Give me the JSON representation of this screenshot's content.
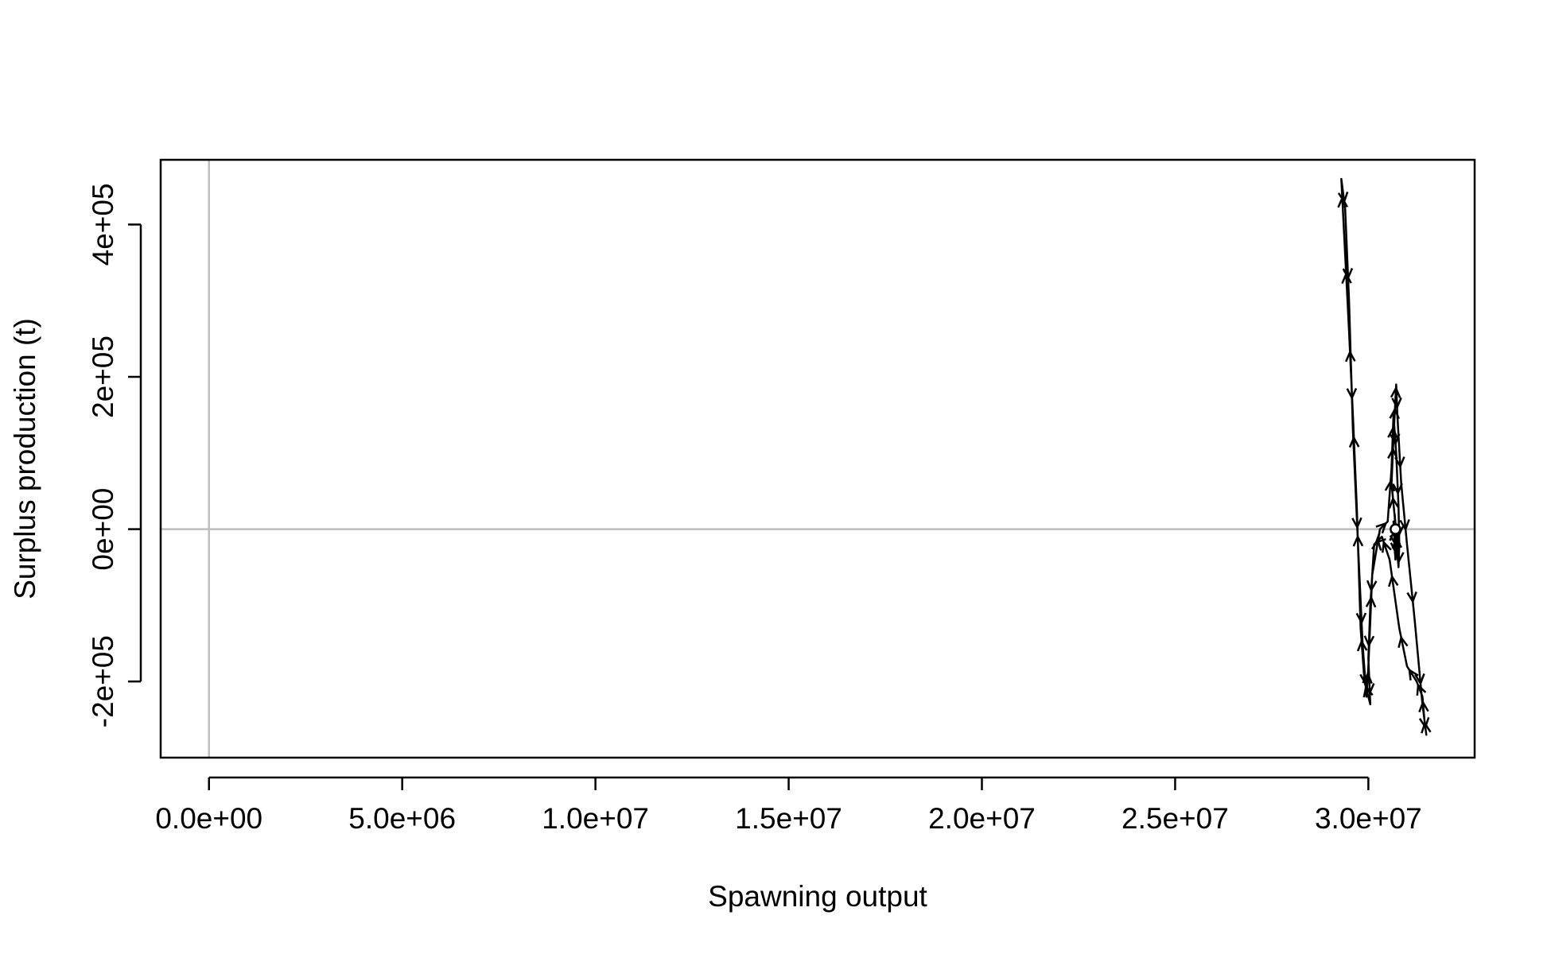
{
  "chart_data": {
    "type": "line",
    "title": "",
    "xlabel": "Spawning output",
    "ylabel": "Surplus production (t)",
    "xlim": [
      -1250000,
      32750000
    ],
    "ylim": [
      -300000,
      485000
    ],
    "x_ticks": [
      0,
      5000000,
      10000000,
      15000000,
      20000000,
      25000000,
      30000000
    ],
    "x_tick_labels": [
      "0.0e+00",
      "5.0e+06",
      "1.0e+07",
      "1.5e+07",
      "2.0e+07",
      "2.5e+07",
      "3.0e+07"
    ],
    "y_ticks": [
      -200000,
      0,
      200000,
      400000
    ],
    "y_tick_labels": [
      "-2e+05",
      "0e+00",
      "2e+05",
      "4e+05"
    ],
    "reference_lines": {
      "x": 0,
      "y": 0,
      "color": "#bebebe"
    },
    "line_color": "#000000",
    "arrows_along_path": true,
    "grid": false,
    "start_point": {
      "x": 30700000,
      "y": 0
    },
    "series": [
      {
        "points": [
          [
            30700000,
            0
          ],
          [
            30700000,
            -40000
          ],
          [
            30650000,
            10000
          ],
          [
            30720000,
            -30000
          ],
          [
            30680000,
            20000
          ],
          [
            30750000,
            -20000
          ],
          [
            30600000,
            60000
          ],
          [
            30650000,
            120000
          ],
          [
            30700000,
            170000
          ],
          [
            30720000,
            190000
          ],
          [
            30750000,
            150000
          ],
          [
            30850000,
            60000
          ],
          [
            31000000,
            -20000
          ],
          [
            31200000,
            -120000
          ],
          [
            31400000,
            -230000
          ],
          [
            31500000,
            -270000
          ],
          [
            31450000,
            -250000
          ],
          [
            31400000,
            -220000
          ],
          [
            31250000,
            -200000
          ],
          [
            31000000,
            -180000
          ],
          [
            30800000,
            -130000
          ],
          [
            30550000,
            -40000
          ],
          [
            30350000,
            -10000
          ],
          [
            30150000,
            -20000
          ],
          [
            30050000,
            -100000
          ],
          [
            30000000,
            -170000
          ],
          [
            30050000,
            -230000
          ],
          [
            29900000,
            -200000
          ],
          [
            29800000,
            -130000
          ],
          [
            29700000,
            30000
          ],
          [
            29600000,
            150000
          ],
          [
            29500000,
            260000
          ],
          [
            29400000,
            360000
          ],
          [
            29300000,
            460000
          ],
          [
            29400000,
            420000
          ],
          [
            29500000,
            300000
          ],
          [
            29600000,
            130000
          ],
          [
            29750000,
            -40000
          ],
          [
            29850000,
            -150000
          ],
          [
            29950000,
            -220000
          ],
          [
            30000000,
            -180000
          ],
          [
            30100000,
            -60000
          ],
          [
            30300000,
            0
          ],
          [
            30500000,
            10000
          ],
          [
            30600000,
            80000
          ],
          [
            30650000,
            150000
          ],
          [
            30720000,
            100000
          ],
          [
            30780000,
            30000
          ],
          [
            30800000,
            -20000
          ],
          [
            30780000,
            -50000
          ],
          [
            30700000,
            0
          ]
        ]
      }
    ]
  }
}
